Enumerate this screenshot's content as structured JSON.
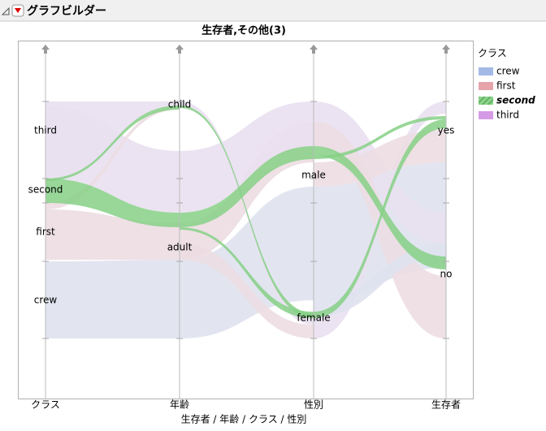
{
  "header": {
    "title": "グラフビルダー"
  },
  "chart": {
    "title": "生存者,その他(3)",
    "x_label": "生存者 / 年齢 / クラス / 性別",
    "axes": [
      {
        "name": "クラス",
        "levels": [
          "third",
          "second",
          "first",
          "crew"
        ]
      },
      {
        "name": "年齢",
        "levels": [
          "child",
          "adult"
        ]
      },
      {
        "name": "性別",
        "levels": [
          "male",
          "female"
        ]
      },
      {
        "name": "生存者",
        "levels": [
          "yes",
          "no"
        ]
      }
    ],
    "legend": {
      "title": "クラス",
      "items": [
        "crew",
        "first",
        "second",
        "third"
      ]
    }
  }
}
